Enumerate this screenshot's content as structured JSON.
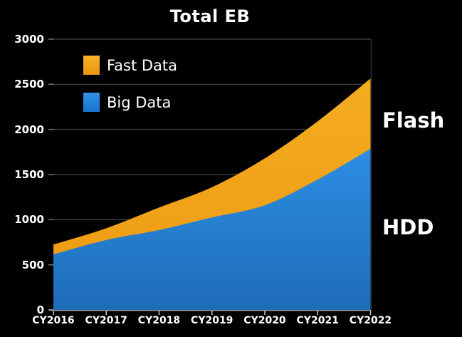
{
  "title": "Total EB",
  "legend": {
    "items": [
      {
        "label": "Fast Data",
        "swatch_top": "#F9B328",
        "swatch_bottom": "#EA9410"
      },
      {
        "label": "Big Data",
        "swatch_top": "#2F92E8",
        "swatch_bottom": "#1973CC"
      }
    ]
  },
  "side_labels": {
    "flash": "Flash",
    "hdd": "HDD"
  },
  "axis_colors": {
    "gridline": "#3a3a3a",
    "baseline": "#999999",
    "tick": "#cccccc",
    "left_tick": "#777777",
    "right_border": "#2e2e2e"
  },
  "chart_data": {
    "type": "area",
    "stacked": true,
    "title": "Total EB",
    "categories": [
      "CY2016",
      "CY2017",
      "CY2018",
      "CY2019",
      "CY2020",
      "CY2021",
      "CY2022"
    ],
    "series": [
      {
        "name": "Big Data",
        "annotation": "HDD",
        "values": [
          615,
          775,
          885,
          1025,
          1160,
          1445,
          1785
        ],
        "color_top": "#2D8EE3",
        "color_bottom": "#1E6CB8"
      },
      {
        "name": "Fast Data",
        "annotation": "Flash",
        "values": [
          110,
          130,
          250,
          335,
          520,
          645,
          780
        ],
        "color_top": "#F5AC20",
        "color_bottom": "#EC9A12"
      }
    ],
    "stacked_totals": [
      725,
      905,
      1135,
      1360,
      1680,
      2090,
      2565
    ],
    "ylabel": "",
    "xlabel": "",
    "ylim": [
      0,
      3000
    ],
    "y_ticks": [
      0,
      500,
      1000,
      1500,
      2000,
      2500,
      3000
    ],
    "grid": true,
    "legend_position": "top-left"
  }
}
